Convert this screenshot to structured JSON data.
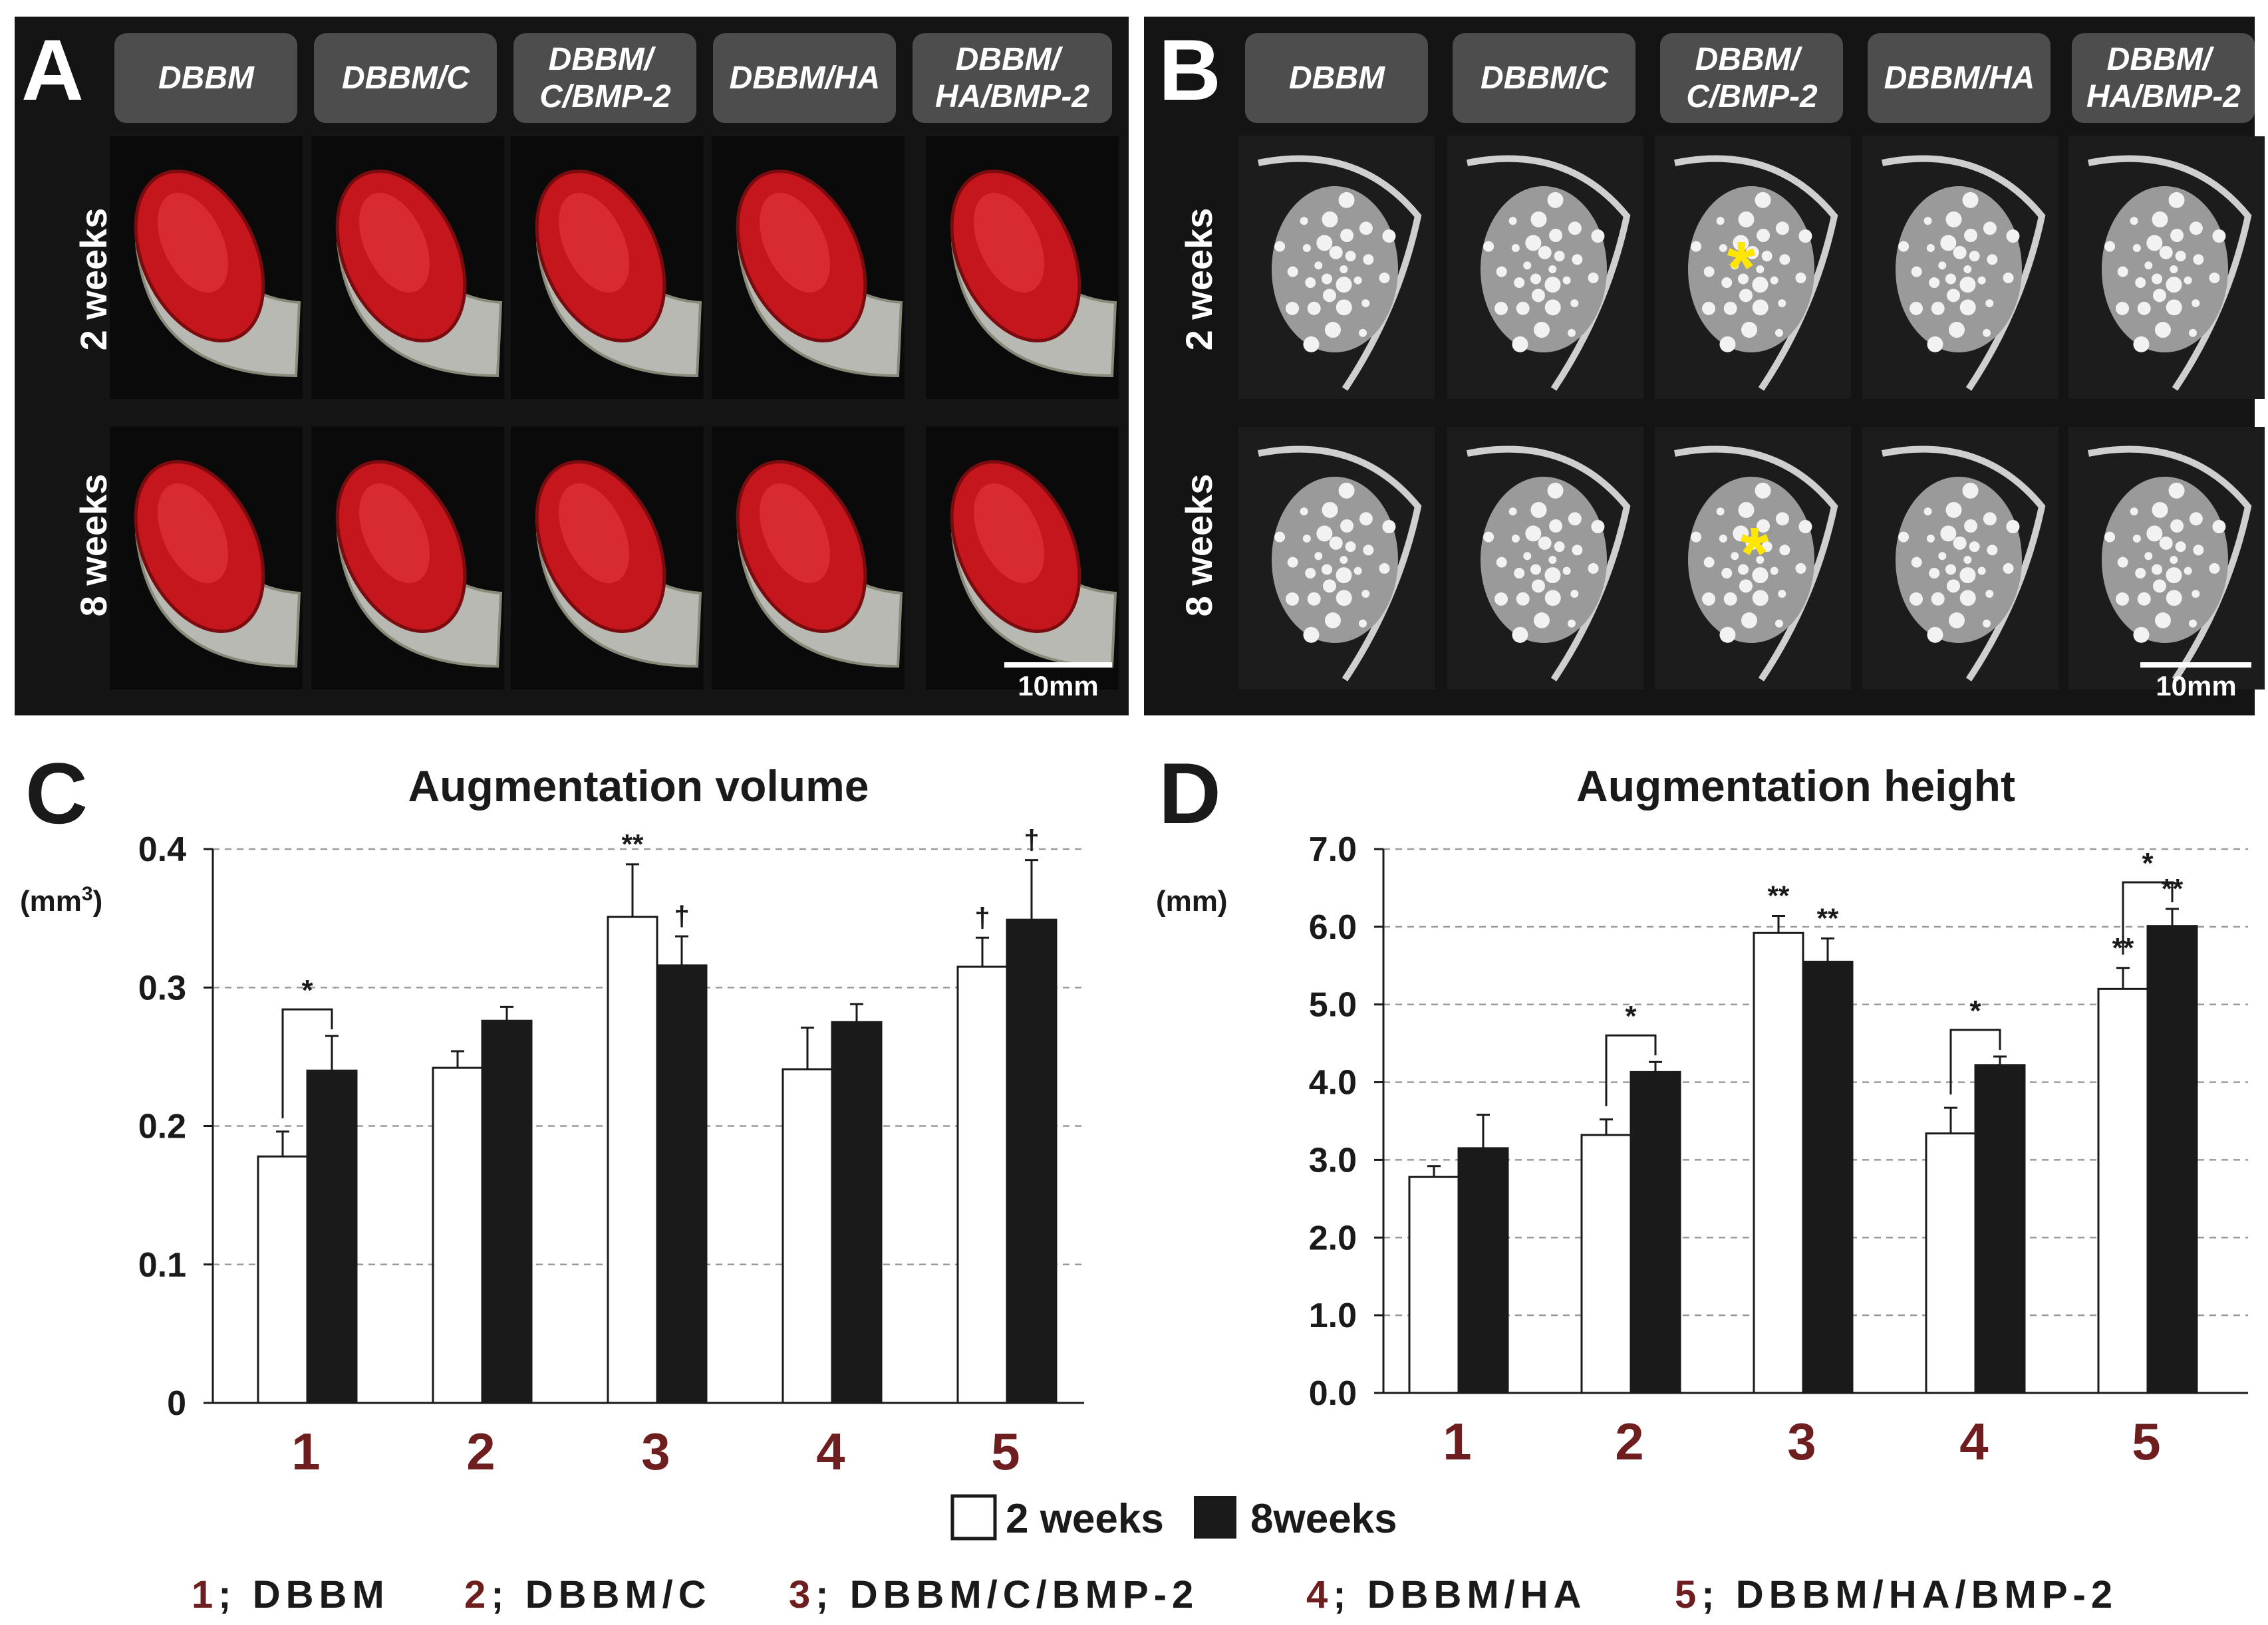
{
  "panel_letters": {
    "a": "A",
    "b": "B",
    "c": "C",
    "d": "D"
  },
  "panel_a": {
    "column_headers": [
      "DBBM",
      "DBBM/C",
      "DBBM/\nC/BMP-2",
      "DBBM/HA",
      "DBBM/\nHA/BMP-2"
    ],
    "row_labels": [
      "2 weeks",
      "8 weeks"
    ],
    "scale_bar": "10mm"
  },
  "panel_b": {
    "column_headers": [
      "DBBM",
      "DBBM/C",
      "DBBM/\nC/BMP-2",
      "DBBM/HA",
      "DBBM/\nHA/BMP-2"
    ],
    "row_labels": [
      "2 weeks",
      "8 weeks"
    ],
    "scale_bar": "10mm",
    "marker": "*"
  },
  "legend": {
    "label_2w": "2 weeks",
    "label_8w": "8weeks"
  },
  "group_key": [
    {
      "num": "1",
      "rest": "; DBBM"
    },
    {
      "num": "2",
      "rest": "; DBBM/C"
    },
    {
      "num": "3",
      "rest": "; DBBM/C/BMP-2"
    },
    {
      "num": "4",
      "rest": "; DBBM/HA"
    },
    {
      "num": "5",
      "rest": "; DBBM/HA/BMP-2"
    }
  ],
  "colors": {
    "bar_2w": "#ffffff",
    "bar_8w": "#1a1a1a",
    "category_red": "#6e1e1e",
    "marker_yellow": "#ffe600",
    "dark_panel": "#141414",
    "header_tab": "#4d4d4d"
  },
  "chart_data": [
    {
      "type": "bar",
      "title": "Augmentation volume",
      "ylabel": "(mm3)",
      "categories": [
        "1",
        "2",
        "3",
        "4",
        "5"
      ],
      "ylim": [
        0,
        0.4
      ],
      "yticks": [
        "0",
        "0.1",
        "0.2",
        "0.3",
        "0.4"
      ],
      "grid": true,
      "series": [
        {
          "name": "2 weeks",
          "values": [
            0.178,
            0.242,
            0.351,
            0.241,
            0.315
          ],
          "errors": [
            0.018,
            0.012,
            0.038,
            0.03,
            0.021
          ]
        },
        {
          "name": "8weeks",
          "values": [
            0.24,
            0.276,
            0.316,
            0.275,
            0.349
          ],
          "errors": [
            0.025,
            0.01,
            0.021,
            0.013,
            0.043
          ]
        }
      ],
      "annotations": [
        {
          "category": "1",
          "type": "bracket",
          "text": "*"
        },
        {
          "category": "3",
          "series": "2 weeks",
          "text": "**"
        },
        {
          "category": "3",
          "series": "8weeks",
          "text": "†"
        },
        {
          "category": "5",
          "series": "2 weeks",
          "text": "†"
        },
        {
          "category": "5",
          "series": "8weeks",
          "text": "†"
        }
      ]
    },
    {
      "type": "bar",
      "title": "Augmentation height",
      "ylabel": "(mm)",
      "categories": [
        "1",
        "2",
        "3",
        "4",
        "5"
      ],
      "ylim": [
        0,
        7.0
      ],
      "yticks": [
        "0.0",
        "1.0",
        "2.0",
        "3.0",
        "4.0",
        "5.0",
        "6.0",
        "7.0"
      ],
      "grid": true,
      "series": [
        {
          "name": "2 weeks",
          "values": [
            2.78,
            3.32,
            5.92,
            3.34,
            5.2
          ],
          "errors": [
            0.14,
            0.2,
            0.22,
            0.33,
            0.27
          ]
        },
        {
          "name": "8weeks",
          "values": [
            3.15,
            4.13,
            5.55,
            4.22,
            6.01
          ],
          "errors": [
            0.43,
            0.13,
            0.3,
            0.11,
            0.22
          ]
        }
      ],
      "annotations": [
        {
          "category": "2",
          "type": "bracket",
          "text": "*"
        },
        {
          "category": "3",
          "series": "2 weeks",
          "text": "**"
        },
        {
          "category": "3",
          "series": "8weeks",
          "text": "**"
        },
        {
          "category": "4",
          "type": "bracket",
          "text": "*"
        },
        {
          "category": "5",
          "series": "2 weeks",
          "text": "**"
        },
        {
          "category": "5",
          "series": "8weeks",
          "text": "**"
        },
        {
          "category": "5",
          "type": "bracket",
          "text": "*"
        }
      ]
    }
  ]
}
